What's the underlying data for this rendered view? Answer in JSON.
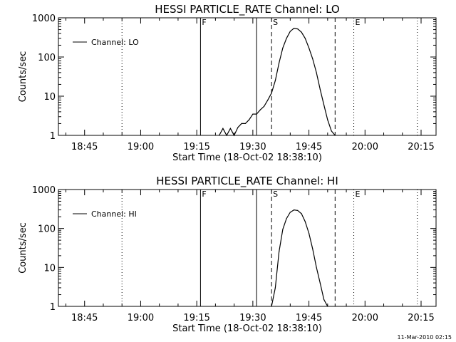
{
  "footer_timestamp": "11-Mar-2010 02:15",
  "chart_data": [
    {
      "type": "line",
      "title": "HESSI PARTICLE_RATE Channel: LO",
      "xlabel": "Start Time (18-Oct-02 18:38:10)",
      "ylabel": "Counts/sec",
      "legend": {
        "label": "Channel: LO",
        "placement": "top-left"
      },
      "yscale": "log",
      "ylim": [
        1,
        1000
      ],
      "yticks": [
        {
          "value": 1,
          "label": "1"
        },
        {
          "value": 10,
          "label": "10"
        },
        {
          "value": 100,
          "label": "100"
        },
        {
          "value": 1000,
          "label": "1000"
        }
      ],
      "xlim": [
        "18:38",
        "20:19"
      ],
      "xticks": [
        "18:45",
        "19:00",
        "19:15",
        "19:30",
        "19:45",
        "20:00",
        "20:15"
      ],
      "markers": [
        {
          "time": "18:55",
          "style": "dotted",
          "label": ""
        },
        {
          "time": "19:16",
          "style": "solid",
          "label": "F"
        },
        {
          "time": "19:31",
          "style": "solid",
          "label": ""
        },
        {
          "time": "19:35",
          "style": "dashed",
          "label": "S"
        },
        {
          "time": "19:52",
          "style": "dashed",
          "label": ""
        },
        {
          "time": "19:57",
          "style": "dotted",
          "label": "E"
        },
        {
          "time": "20:14",
          "style": "dotted",
          "label": ""
        }
      ],
      "series": [
        {
          "name": "Channel: LO",
          "x": [
            "19:21",
            "19:22",
            "19:23",
            "19:24",
            "19:25",
            "19:26",
            "19:27",
            "19:28",
            "19:29",
            "19:30",
            "19:31",
            "19:32",
            "19:33",
            "19:34",
            "19:35",
            "19:36",
            "19:37",
            "19:38",
            "19:39",
            "19:40",
            "19:41",
            "19:42",
            "19:43",
            "19:44",
            "19:45",
            "19:46",
            "19:47",
            "19:48",
            "19:49",
            "19:50",
            "19:51",
            "19:52"
          ],
          "y": [
            1,
            1.5,
            1,
            1.5,
            1,
            1.6,
            2,
            2,
            2.5,
            3.5,
            3.5,
            4.5,
            5.5,
            8,
            12,
            25,
            70,
            170,
            300,
            450,
            540,
            520,
            430,
            300,
            170,
            90,
            40,
            15,
            6,
            2.5,
            1.3,
            1
          ]
        }
      ]
    },
    {
      "type": "line",
      "title": "HESSI PARTICLE_RATE Channel: HI",
      "xlabel": "Start Time (18-Oct-02 18:38:10)",
      "ylabel": "Counts/sec",
      "legend": {
        "label": "Channel: HI",
        "placement": "top-left"
      },
      "yscale": "log",
      "ylim": [
        1,
        1000
      ],
      "yticks": [
        {
          "value": 1,
          "label": "1"
        },
        {
          "value": 10,
          "label": "10"
        },
        {
          "value": 100,
          "label": "100"
        },
        {
          "value": 1000,
          "label": "1000"
        }
      ],
      "xlim": [
        "18:38",
        "20:19"
      ],
      "xticks": [
        "18:45",
        "19:00",
        "19:15",
        "19:30",
        "19:45",
        "20:00",
        "20:15"
      ],
      "markers": [
        {
          "time": "18:55",
          "style": "dotted",
          "label": ""
        },
        {
          "time": "19:16",
          "style": "solid",
          "label": "F"
        },
        {
          "time": "19:31",
          "style": "solid",
          "label": ""
        },
        {
          "time": "19:35",
          "style": "dashed",
          "label": "S"
        },
        {
          "time": "19:52",
          "style": "dashed",
          "label": ""
        },
        {
          "time": "19:57",
          "style": "dotted",
          "label": "E"
        },
        {
          "time": "20:14",
          "style": "dotted",
          "label": ""
        }
      ],
      "series": [
        {
          "name": "Channel: HI",
          "x": [
            "19:35",
            "19:36",
            "19:37",
            "19:38",
            "19:39",
            "19:40",
            "19:41",
            "19:42",
            "19:43",
            "19:44",
            "19:45",
            "19:46",
            "19:47",
            "19:48",
            "19:49",
            "19:50"
          ],
          "y": [
            1,
            3,
            25,
            95,
            180,
            260,
            300,
            290,
            240,
            150,
            75,
            30,
            10,
            4,
            1.5,
            1
          ]
        }
      ]
    }
  ]
}
